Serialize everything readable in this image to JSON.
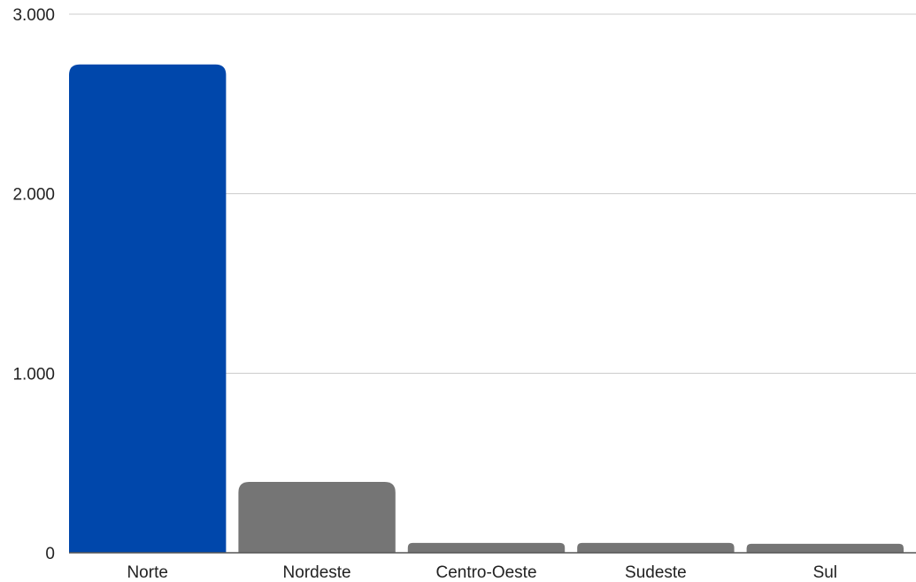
{
  "chart_data": {
    "type": "bar",
    "title": "",
    "xlabel": "",
    "ylabel": "",
    "categories": [
      "Norte",
      "Nordeste",
      "Centro-Oeste",
      "Sudeste",
      "Sul"
    ],
    "values": [
      2720,
      395,
      55,
      55,
      50
    ],
    "ylim": [
      0,
      3000
    ],
    "yticks": [
      0,
      1000,
      2000,
      3000
    ],
    "ytick_labels": [
      "0",
      "1.000",
      "2.000",
      "3.000"
    ],
    "grid": true,
    "legend": "none",
    "colors": {
      "highlight": "#0047AB",
      "default": "#757575",
      "grid": "#cccccc",
      "axis": "#555555"
    },
    "highlight_index": 0
  }
}
